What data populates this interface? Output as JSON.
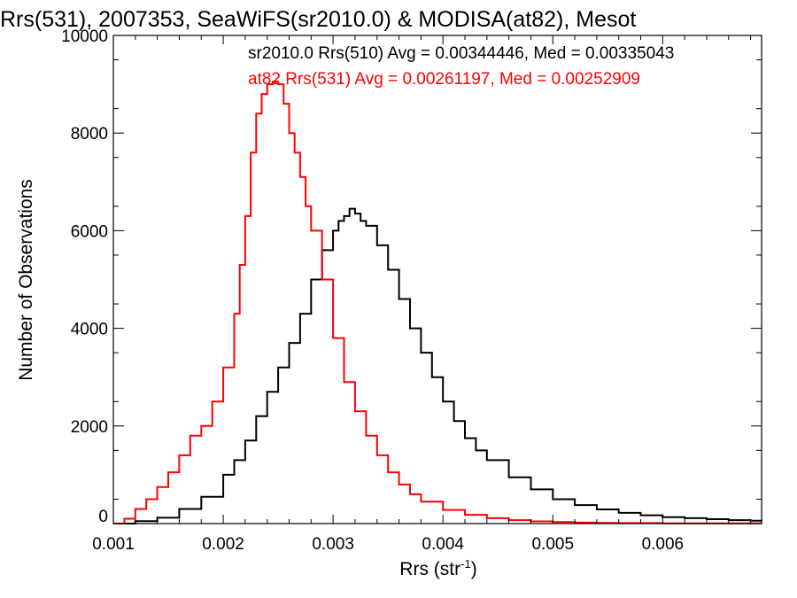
{
  "chart_data": {
    "type": "line",
    "title": "Rrs(531), 2007353, SeaWiFS(sr2010.0) & MODISA(at82), Mesot",
    "xlabel": "Rrs (str",
    "xlabel_sup": "-1",
    "xlabel_close": ")",
    "ylabel": "Number of Observations",
    "xlim": [
      0.001,
      0.0069
    ],
    "ylim": [
      0,
      10000
    ],
    "x_ticks": [
      0.001,
      0.002,
      0.003,
      0.004,
      0.005,
      0.006
    ],
    "x_tick_labels": [
      "0.001",
      "0.002",
      "0.003",
      "0.004",
      "0.005",
      "0.006"
    ],
    "y_ticks": [
      0,
      2000,
      4000,
      6000,
      8000,
      10000
    ],
    "y_tick_labels": [
      "0",
      "2000",
      "4000",
      "6000",
      "8000",
      "10000"
    ],
    "grid": false,
    "legend_position": "top-right",
    "series": [
      {
        "name": "sr2010.0 Rrs(510) Avg = 0.00344446, Med = 0.00335043",
        "color": "#000000",
        "x": [
          0.001,
          0.0012,
          0.0014,
          0.0016,
          0.0018,
          0.002,
          0.0021,
          0.0022,
          0.0023,
          0.0024,
          0.0025,
          0.0026,
          0.0027,
          0.0028,
          0.0029,
          0.003,
          0.00305,
          0.0031,
          0.00315,
          0.0032,
          0.00325,
          0.0033,
          0.0034,
          0.0035,
          0.0036,
          0.0037,
          0.0038,
          0.0039,
          0.004,
          0.0041,
          0.0042,
          0.0043,
          0.0044,
          0.0046,
          0.0048,
          0.005,
          0.0052,
          0.0054,
          0.0056,
          0.0058,
          0.006,
          0.0062,
          0.0064,
          0.0066,
          0.0068,
          0.0069
        ],
        "y": [
          0,
          50,
          120,
          300,
          550,
          1000,
          1300,
          1700,
          2200,
          2700,
          3200,
          3700,
          4300,
          5000,
          5600,
          6000,
          6200,
          6300,
          6450,
          6350,
          6200,
          6100,
          5700,
          5200,
          4600,
          4000,
          3500,
          3000,
          2500,
          2100,
          1750,
          1500,
          1300,
          950,
          700,
          500,
          380,
          290,
          220,
          170,
          130,
          110,
          90,
          70,
          60,
          50
        ]
      },
      {
        "name": "at82 Rrs(531) Avg = 0.00261197, Med = 0.00252909",
        "color": "#ff0000",
        "x": [
          0.001,
          0.0011,
          0.0012,
          0.0013,
          0.0014,
          0.0015,
          0.0016,
          0.0017,
          0.0018,
          0.0019,
          0.002,
          0.0021,
          0.00215,
          0.0022,
          0.00225,
          0.0023,
          0.00235,
          0.0024,
          0.00245,
          0.0025,
          0.00255,
          0.0026,
          0.00265,
          0.0027,
          0.00275,
          0.0028,
          0.0029,
          0.003,
          0.0031,
          0.0032,
          0.0033,
          0.0034,
          0.0035,
          0.0036,
          0.0037,
          0.0038,
          0.004,
          0.0042,
          0.0044,
          0.0046,
          0.0048,
          0.005,
          0.0052,
          0.0054,
          0.0056,
          0.006,
          0.0064,
          0.0069
        ],
        "y": [
          0,
          100,
          300,
          500,
          750,
          1050,
          1400,
          1800,
          2000,
          2500,
          3200,
          4300,
          5300,
          6300,
          7600,
          8400,
          8800,
          9000,
          9050,
          9000,
          8600,
          8000,
          7600,
          7100,
          6500,
          6000,
          5000,
          3800,
          2900,
          2300,
          1800,
          1400,
          1050,
          800,
          600,
          450,
          280,
          180,
          110,
          70,
          45,
          30,
          20,
          15,
          10,
          5,
          3,
          0
        ]
      }
    ]
  }
}
